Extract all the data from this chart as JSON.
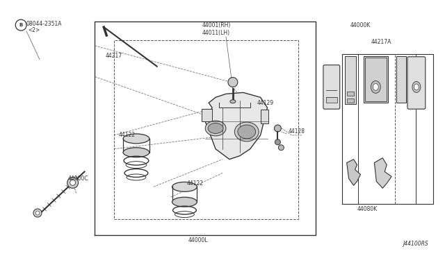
{
  "bg_color": "#ffffff",
  "line_color": "#333333",
  "fig_width": 6.4,
  "fig_height": 3.72,
  "dpi": 100,
  "title_code": "J44100RS",
  "labels": {
    "ref_circle_text": "B",
    "ref_part": "08044-2351A",
    "ref_qty": "<2>",
    "44217": "44217",
    "44000C": "44000C",
    "44001RH": "44001(RH)",
    "44011LH": "44011(LH)",
    "44129": "44129",
    "44128": "44128",
    "44122a": "44122",
    "44122b": "44122",
    "44000L": "44000L",
    "44000K": "44000K",
    "44217A": "44217A",
    "44080K": "44080K"
  }
}
